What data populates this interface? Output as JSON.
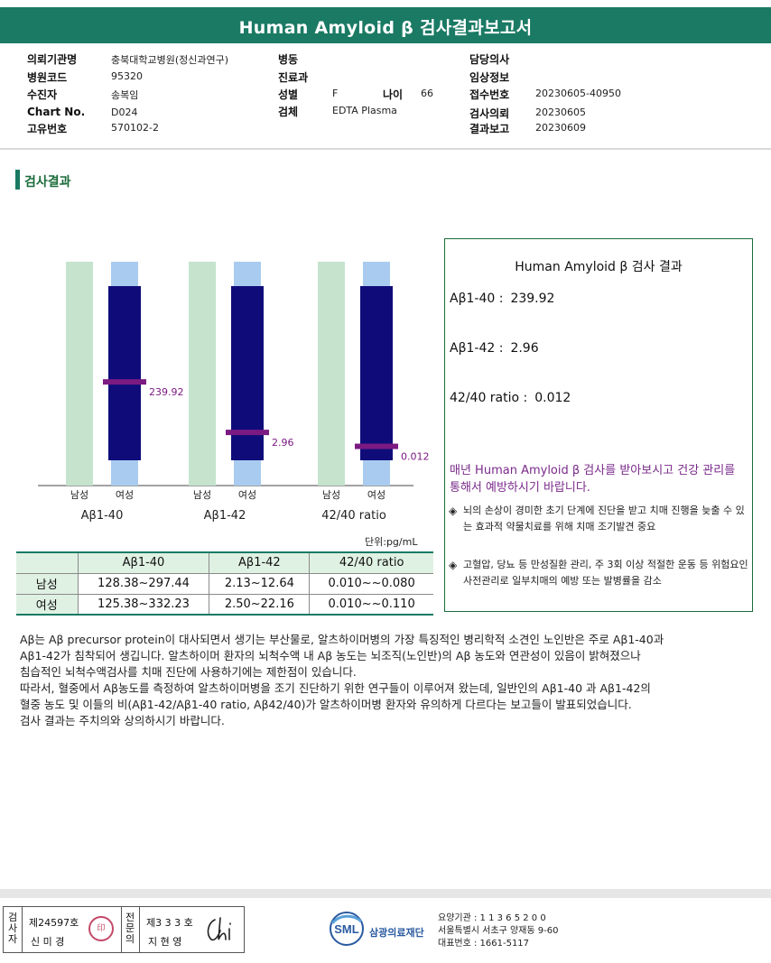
{
  "header": {
    "title": "Human Amyloid β 검사결과보고서"
  },
  "info": {
    "fields": [
      {
        "label": "의뢰기관명",
        "value": "충북대학교병원(정신과연구)"
      },
      {
        "label": "병원코드",
        "value": "95320"
      },
      {
        "label": "수진자",
        "value": "송복임"
      },
      {
        "label": "Chart No.",
        "value": "D024"
      },
      {
        "label": "고유번호",
        "value": "570102-2"
      },
      {
        "label": "병동",
        "value": ""
      },
      {
        "label": "진료과",
        "value": ""
      },
      {
        "label": "성별",
        "value": "F"
      },
      {
        "label": "나이",
        "value": "66"
      },
      {
        "label": "검체",
        "value": "EDTA Plasma"
      },
      {
        "label": "담당의사",
        "value": ""
      },
      {
        "label": "임상정보",
        "value": ""
      },
      {
        "label": "접수번호",
        "value": "20230605-40950"
      },
      {
        "label": "검사의뢰",
        "value": "20230605"
      },
      {
        "label": "결과보고",
        "value": "20230609"
      }
    ]
  },
  "section": {
    "title": "검사결과"
  },
  "chart_data": {
    "type": "bar",
    "groups": [
      {
        "name": "Aβ1-40",
        "male_label": "남성",
        "female_label": "여성",
        "marker": 239.92,
        "marker_label": "239.92",
        "marker_pos": 0.45
      },
      {
        "name": "Aβ1-42",
        "male_label": "남성",
        "female_label": "여성",
        "marker": 2.96,
        "marker_label": "2.96",
        "marker_pos": 0.16
      },
      {
        "name": "42/40 ratio",
        "male_label": "남성",
        "female_label": "여성",
        "marker": 0.012,
        "marker_label": "0.012",
        "marker_pos": 0.08
      }
    ],
    "unit": "단위:pg/mL",
    "colors": {
      "male": "#c5e3cd",
      "female_outer": "#a9cbef",
      "female_inner": "#0f0c7a",
      "marker": "#7a1a82"
    }
  },
  "ref_table": {
    "headers": [
      "",
      "Aβ1-40",
      "Aβ1-42",
      "42/40 ratio"
    ],
    "rows": [
      [
        "남성",
        "128.38~297.44",
        "2.13~12.64",
        "0.010~~0.080"
      ],
      [
        "여성",
        "125.38~332.23",
        "2.50~22.16",
        "0.010~~0.110"
      ]
    ]
  },
  "result_box": {
    "title": "Human Amyloid β 검사 결과",
    "lines": [
      {
        "label": "Aβ1-40 :",
        "value": "239.92"
      },
      {
        "label": "Aβ1-42 :",
        "value": "2.96"
      },
      {
        "label": "42/40 ratio :",
        "value": "0.012"
      }
    ],
    "advice": "매년 Human Amyloid β 검사를 받아보시고 건강 관리를 통해서 예방하시기 바랍니다.",
    "bullets": [
      "뇌의 손상이 경미한 초기 단계에 진단을 받고 치매 진행을 늦출 수 있는 효과적 약물치료를 위해 치매 조기발견 중요",
      "고혈압, 당뇨 등 만성질환 관리, 주 3회 이상 적절한 운동 등 위험요인 사전관리로 일부치매의 예방 또는 발병률을 감소"
    ]
  },
  "description": [
    "Aβ는 Aβ precursor protein이 대사되면서 생기는 부산물로, 알츠하이머병의 가장 특징적인 병리학적 소견인 노인반은 주로 Aβ1-40과",
    "Aβ1-42가 침착되어 생깁니다. 알츠하이머 환자의 뇌척수액 내 Aβ 농도는 뇌조직(노인반)의 Aβ 농도와 연관성이 있음이 밝혀졌으나",
    "침습적인 뇌척수액검사를 치매 진단에 사용하기에는 제한점이 있습니다.",
    "따라서, 혈중에서 Aβ농도를 측정하여 알츠하이머병을 조기 진단하기 위한 연구들이 이루어져 왔는데, 일반인의 Aβ1-40 과 Aβ1-42의",
    "혈중 농도 및 이들의 비(Aβ1-42/Aβ1-40 ratio, Aβ42/40)가 알츠하이머병 환자와 유의하게 다르다는 보고들이 발표되었습니다.",
    "검사 결과는 주치의와 상의하시기 바랍니다."
  ],
  "footer": {
    "examiner_label": "검사자",
    "examiner_license": "제24597호",
    "examiner_name": "신 미 경",
    "doctor_label": "전문의",
    "doctor_license": "제3 3 3 호",
    "doctor_name": "지 현 영",
    "org_name": "삼광의료재단",
    "logo_text": "SML",
    "lab_lines": [
      "요양기관 : 1 1 3 6 5 2 0 0",
      "서울특별시 서초구 양재동 9-60",
      "대표번호 : 1661-5117"
    ]
  }
}
